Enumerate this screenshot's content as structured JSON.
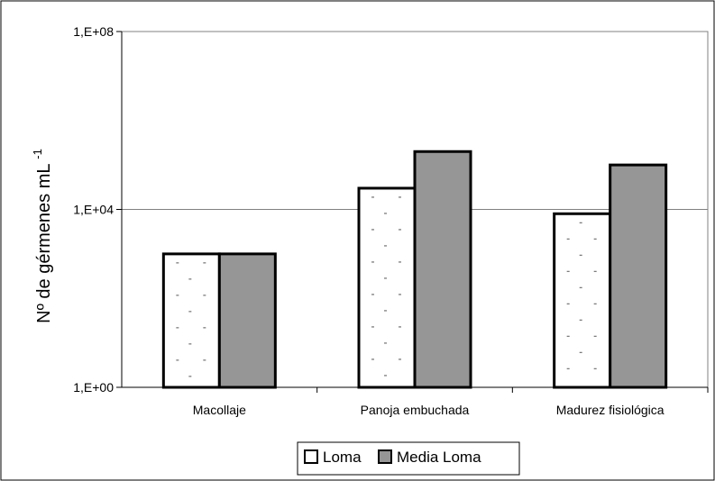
{
  "chart_data": {
    "type": "bar",
    "title": "",
    "xlabel": "",
    "ylabel": "Nº de gérmenes mL",
    "ylabel_superscript": "-1",
    "yscale": "log",
    "ylim": [
      1,
      100000000
    ],
    "yticks": [
      {
        "value": 1,
        "label": "1,E+00"
      },
      {
        "value": 10000,
        "label": "1,E+04"
      },
      {
        "value": 100000000,
        "label": "1,E+08"
      }
    ],
    "categories": [
      "Macollaje",
      "Panoja embuchada",
      "Madurez fisiológica"
    ],
    "series": [
      {
        "name": "Loma",
        "values": [
          1000,
          30000,
          8000
        ],
        "color": "#ffffff",
        "pattern": "dashed-dots"
      },
      {
        "name": "Media Loma",
        "values": [
          1000,
          200000,
          100000
        ],
        "color": "#969696"
      }
    ],
    "grid": "horizontal major lines",
    "legend_position": "bottom"
  }
}
